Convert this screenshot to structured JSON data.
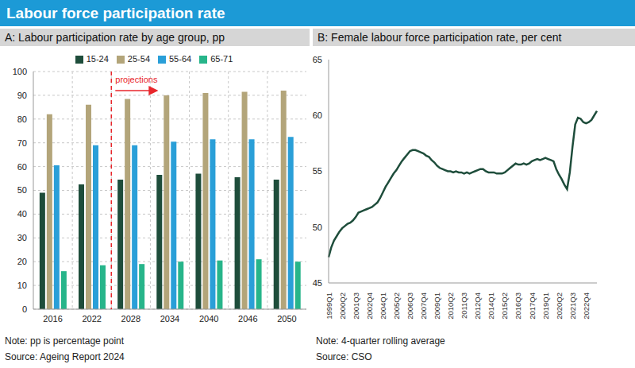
{
  "title": "Labour force participation rate",
  "chart_data": [
    {
      "type": "bar",
      "title": "A: Labour participation rate by age group, pp",
      "categories": [
        "2016",
        "2022",
        "2028",
        "2034",
        "2040",
        "2046",
        "2050"
      ],
      "series": [
        {
          "name": "15-24",
          "color": "#1e4d3b",
          "values": [
            49,
            52.5,
            54.5,
            56.5,
            57,
            55.5,
            54.5
          ]
        },
        {
          "name": "25-54",
          "color": "#b3a57a",
          "values": [
            82,
            86,
            88.5,
            90,
            91,
            91.5,
            92
          ]
        },
        {
          "name": "55-64",
          "color": "#2a9fd8",
          "values": [
            60.5,
            69,
            69,
            70.5,
            71.5,
            71.5,
            72.5
          ]
        },
        {
          "name": "65-71",
          "color": "#27b58a",
          "values": [
            16,
            18.5,
            19,
            20,
            20.5,
            21,
            20
          ]
        }
      ],
      "ylim": [
        0,
        100
      ],
      "yticks": [
        0,
        10,
        20,
        30,
        40,
        50,
        60,
        70,
        80,
        90,
        100
      ],
      "grid": true,
      "legend": "top",
      "annotation": {
        "text": "projections",
        "from": "2028"
      },
      "notes": [
        "Note: pp is percentage point",
        "Source: Ageing Report 2024"
      ]
    },
    {
      "type": "line",
      "title": "B: Female labour force participation rate, per cent",
      "categories": [
        "1999Q1",
        null,
        null,
        null,
        null,
        "2000Q2",
        null,
        null,
        null,
        null,
        "2001Q3",
        null,
        null,
        null,
        null,
        "2002Q4",
        null,
        null,
        null,
        null,
        "2004Q1",
        null,
        null,
        null,
        null,
        "2005Q2",
        null,
        null,
        null,
        null,
        "2006Q3",
        null,
        null,
        null,
        null,
        "2007Q4",
        null,
        null,
        null,
        null,
        "2009Q1",
        null,
        null,
        null,
        null,
        "2010Q2",
        null,
        null,
        null,
        null,
        "2011Q3",
        null,
        null,
        null,
        null,
        "2012Q4",
        null,
        null,
        null,
        null,
        "2014Q1",
        null,
        null,
        null,
        null,
        "2015Q2",
        null,
        null,
        null,
        null,
        "2016Q3",
        null,
        null,
        null,
        null,
        "2017Q4",
        null,
        null,
        null,
        null,
        "2019Q1",
        null,
        null,
        null,
        null,
        "2020Q2",
        null,
        null,
        null,
        null,
        "2021Q3",
        null,
        null,
        null,
        null,
        "2022Q4",
        null,
        null,
        null,
        null
      ],
      "series": [
        {
          "color": "#1e4d3b",
          "values": [
            47.3,
            48.2,
            48.8,
            49.2,
            49.6,
            49.9,
            50.1,
            50.3,
            50.4,
            50.6,
            50.9,
            51.3,
            51.4,
            51.5,
            51.6,
            51.7,
            51.8,
            52.0,
            52.2,
            52.6,
            53.1,
            53.6,
            54.0,
            54.4,
            54.8,
            55.1,
            55.5,
            55.9,
            56.2,
            56.5,
            56.8,
            56.9,
            56.9,
            56.8,
            56.7,
            56.6,
            56.4,
            56.3,
            56.0,
            55.8,
            55.5,
            55.3,
            55.2,
            55.1,
            55.0,
            55.0,
            54.9,
            55.0,
            54.9,
            54.9,
            54.8,
            54.9,
            54.8,
            54.9,
            55.0,
            55.1,
            55.2,
            55.2,
            55.0,
            54.9,
            54.9,
            54.9,
            54.8,
            54.8,
            54.8,
            54.9,
            55.1,
            55.3,
            55.5,
            55.7,
            55.6,
            55.6,
            55.7,
            55.6,
            55.7,
            55.9,
            56.0,
            56.1,
            56.0,
            56.1,
            56.2,
            56.1,
            56.0,
            55.9,
            55.2,
            54.7,
            54.3,
            53.8,
            53.4,
            54.9,
            57.2,
            59.2,
            59.8,
            59.7,
            59.4,
            59.3,
            59.4,
            59.6,
            60.0,
            60.4
          ]
        }
      ],
      "ylim": [
        45,
        65
      ],
      "yticks": [
        45,
        50,
        55,
        60,
        65
      ],
      "grid": false,
      "notes": [
        "Note: 4-quarter rolling average",
        "Source: CSO"
      ]
    }
  ]
}
